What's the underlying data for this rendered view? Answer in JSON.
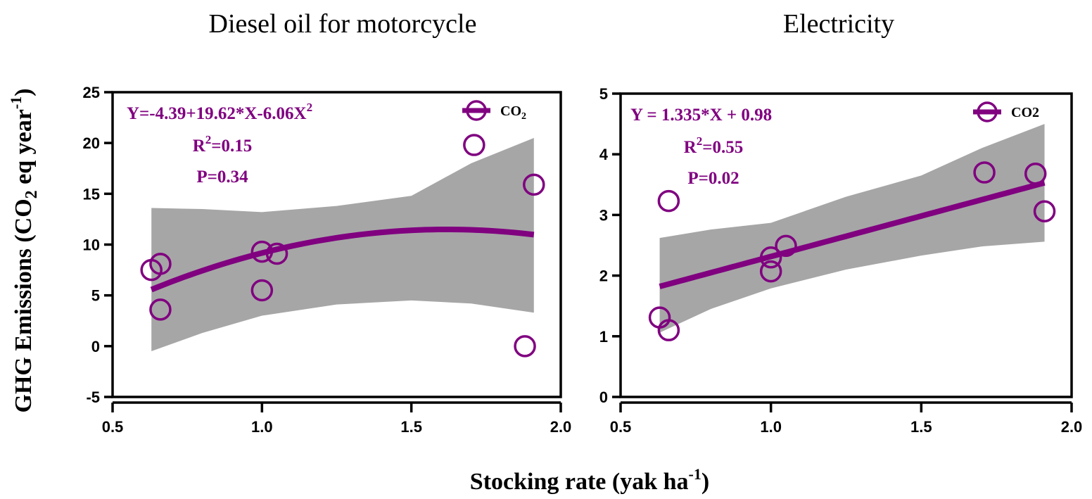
{
  "colors": {
    "series": "#800080",
    "band": "#a6a6a6",
    "axis": "#000000"
  },
  "shared": {
    "ylabel": {
      "main": "GHG Emissions (CO",
      "sub": "2",
      "mid": " eq year",
      "sup": "-1",
      "end": ")"
    },
    "xlabel": {
      "main": "Stocking rate (yak ha",
      "sup": "-1",
      "end": ")"
    }
  },
  "chart_data": [
    {
      "type": "scatter",
      "title": "Diesel oil for motorcycle",
      "xlim": [
        0.5,
        2.0
      ],
      "ylim": [
        -5,
        25
      ],
      "xticks": [
        "0.5",
        "1.0",
        "1.5",
        "2.0"
      ],
      "yticks": [
        "-5",
        "0",
        "5",
        "10",
        "15",
        "20",
        "25"
      ],
      "legend": {
        "label": "CO",
        "sub": "2",
        "position": "top-right",
        "marker": "open-circle-with-line"
      },
      "annotations": {
        "equation": "Y=-4.39+19.62*X-6.06X",
        "equation_sup": "2",
        "r2_pre": "R",
        "r2_sup": "2",
        "r2_post": "=0.15",
        "p": "P=0.34"
      },
      "fit": {
        "type": "quadratic",
        "coefficients": [
          -4.39,
          19.62,
          -6.06
        ],
        "x_range": [
          0.63,
          1.91
        ]
      },
      "confidence_band": {
        "x": [
          0.63,
          0.8,
          1.0,
          1.25,
          1.5,
          1.7,
          1.91
        ],
        "lower": [
          -0.5,
          1.3,
          3.0,
          4.1,
          4.5,
          4.2,
          3.3
        ],
        "upper": [
          13.6,
          13.5,
          13.2,
          13.8,
          14.8,
          18.0,
          20.5
        ]
      },
      "points": {
        "x": [
          0.63,
          0.66,
          0.66,
          1.0,
          1.05,
          1.0,
          1.71,
          1.91,
          1.88
        ],
        "y": [
          7.5,
          8.1,
          3.6,
          9.3,
          9.1,
          5.5,
          19.8,
          15.9,
          0.0
        ]
      }
    },
    {
      "type": "scatter",
      "title": "Electricity",
      "xlim": [
        0.5,
        2.0
      ],
      "ylim": [
        0,
        5
      ],
      "xticks": [
        "0.5",
        "1.0",
        "1.5",
        "2.0"
      ],
      "yticks": [
        "0",
        "1",
        "2",
        "3",
        "4",
        "5"
      ],
      "legend": {
        "label": "CO2",
        "sub": "",
        "position": "top-right",
        "marker": "open-circle-with-line"
      },
      "annotations": {
        "equation": "Y = 1.335*X + 0.98",
        "equation_sup": "",
        "r2_pre": "R",
        "r2_sup": "2",
        "r2_post": "=0.55",
        "p": "P=0.02"
      },
      "fit": {
        "type": "linear",
        "coefficients": [
          0.98,
          1.335
        ],
        "x_range": [
          0.63,
          1.91
        ]
      },
      "confidence_band": {
        "x": [
          0.63,
          0.8,
          1.0,
          1.25,
          1.5,
          1.7,
          1.91
        ],
        "lower": [
          1.06,
          1.45,
          1.79,
          2.1,
          2.33,
          2.48,
          2.56
        ],
        "upper": [
          2.62,
          2.76,
          2.87,
          3.3,
          3.65,
          4.1,
          4.5
        ]
      },
      "points": {
        "x": [
          0.66,
          0.63,
          0.66,
          1.0,
          1.0,
          1.05,
          1.71,
          1.88,
          1.91
        ],
        "y": [
          3.23,
          1.31,
          1.1,
          2.3,
          2.07,
          2.49,
          3.7,
          3.68,
          3.06
        ]
      }
    }
  ]
}
